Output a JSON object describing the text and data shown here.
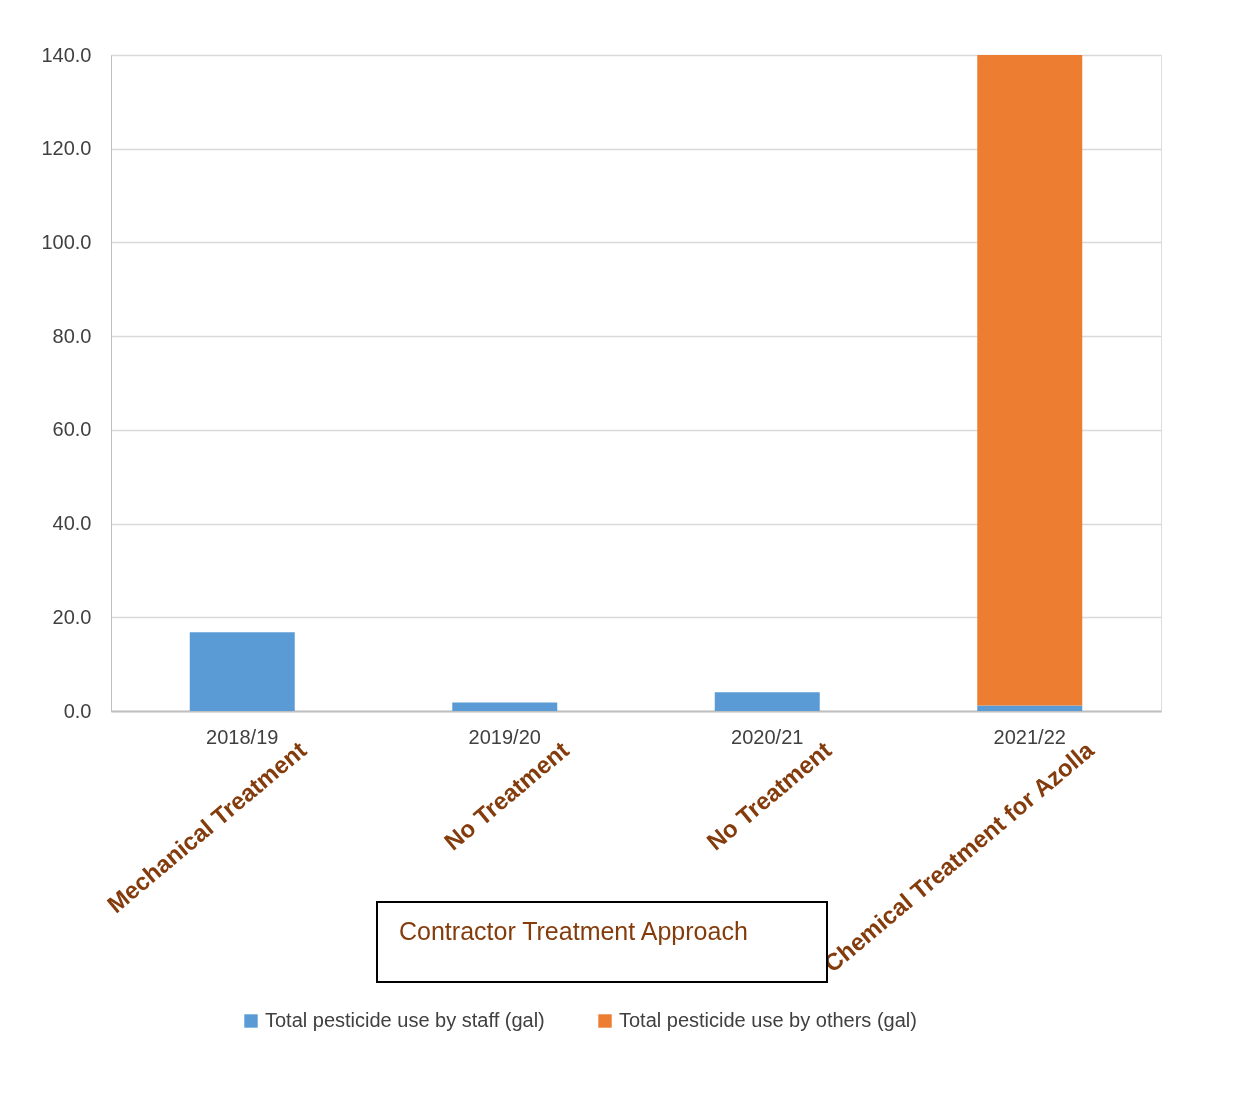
{
  "chart_data": {
    "type": "bar",
    "stacked": true,
    "categories": [
      "2018/19",
      "2019/20",
      "2020/21",
      "2021/22"
    ],
    "series": [
      {
        "name": "Total pesticide use by staff (gal)",
        "color": "#5b9bd5",
        "values": [
          16.8,
          1.8,
          4.0,
          1.2
        ]
      },
      {
        "name": "Total pesticide use by others (gal)",
        "color": "#ed7d31",
        "values": [
          0,
          0,
          0,
          138.8
        ]
      }
    ],
    "ylim": [
      0,
      140
    ],
    "yticks": [
      {
        "value": 0,
        "label": "0.0"
      },
      {
        "value": 20,
        "label": "20.0"
      },
      {
        "value": 40,
        "label": "40.0"
      },
      {
        "value": 60,
        "label": "60.0"
      },
      {
        "value": 80,
        "label": "80.0"
      },
      {
        "value": 100,
        "label": "100.0"
      },
      {
        "value": 120,
        "label": "120.0"
      },
      {
        "value": 140,
        "label": "140.0"
      }
    ],
    "grid": "y",
    "legend": "bottom",
    "annotations": [
      "Mechanical Treatment",
      "No Treatment",
      "No Treatment",
      "Chemical Treatment for Azolla",
      "Contractor Treatment Approach"
    ]
  }
}
